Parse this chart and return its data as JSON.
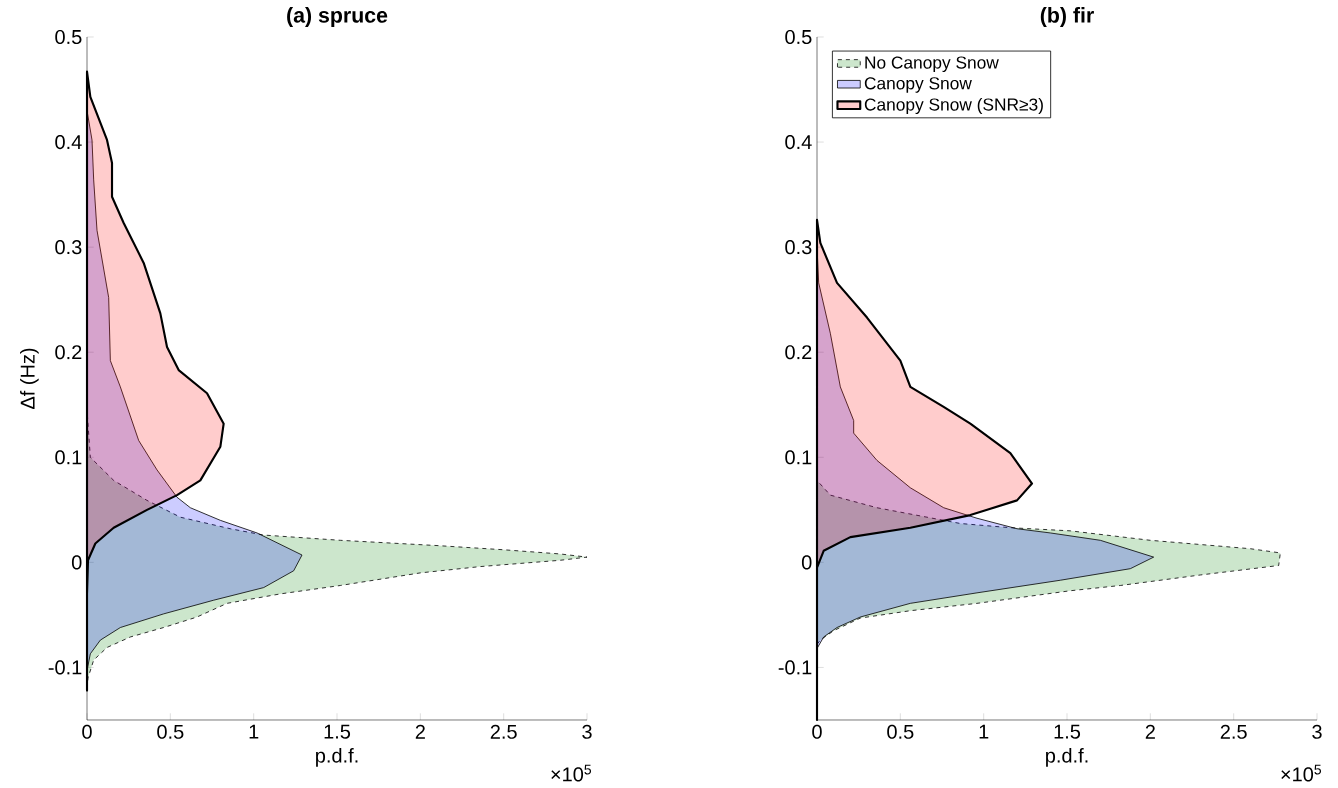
{
  "chart_data": [
    {
      "type": "area",
      "orientation": "horizontal",
      "title": "(a) spruce",
      "xlabel": "p.d.f.",
      "ylabel": "Δf (Hz)",
      "legend": false,
      "xlim": [
        0,
        3
      ],
      "ylim": [
        -0.15,
        0.5
      ],
      "xticks": [
        0,
        0.5,
        1,
        1.5,
        2,
        2.5,
        3
      ],
      "yticks": [
        -0.1,
        0,
        0.1,
        0.2,
        0.3,
        0.4,
        0.5
      ],
      "annotations": [
        "×10$^{5}$"
      ],
      "series": [
        {
          "color": "#008000",
          "line_style": "dashed",
          "x": [
            -0.12,
            -0.11,
            -0.093,
            -0.081,
            -0.071,
            -0.062,
            -0.052,
            -0.039,
            -0.03,
            -0.022,
            -0.01,
            -0.004,
            0.002,
            0.005,
            0.008,
            0.012,
            0.016,
            0.021,
            0.026,
            0.032,
            0.043,
            0.059,
            0.078,
            0.1,
            0.145
          ],
          "values": [
            0,
            0.006,
            0.04,
            0.12,
            0.26,
            0.46,
            0.66,
            0.84,
            1.16,
            1.52,
            2.0,
            2.36,
            2.84,
            3.0,
            2.84,
            2.5,
            2.1,
            1.52,
            1.06,
            0.86,
            0.56,
            0.36,
            0.16,
            0.02,
            0
          ]
        },
        {
          "color": "#0000ff",
          "line_style": "solid",
          "x": [
            -0.103,
            -0.087,
            -0.074,
            -0.062,
            -0.049,
            -0.036,
            -0.024,
            -0.008,
            0.007,
            0.014,
            0.028,
            0.04,
            0.052,
            0.062,
            0.088,
            0.116,
            0.167,
            0.192,
            0.252,
            0.316,
            0.364,
            0.402,
            0.43
          ],
          "values": [
            0,
            0.02,
            0.08,
            0.2,
            0.46,
            0.76,
            1.06,
            1.24,
            1.29,
            1.2,
            1.02,
            0.8,
            0.62,
            0.54,
            0.42,
            0.31,
            0.2,
            0.14,
            0.13,
            0.06,
            0.04,
            0.03,
            0
          ]
        },
        {
          "color": "#ff0000",
          "line_style": "solid",
          "x": [
            -0.122,
            -0.03,
            0.002,
            0.018,
            0.033,
            0.05,
            0.064,
            0.078,
            0.11,
            0.132,
            0.161,
            0.183,
            0.205,
            0.237,
            0.285,
            0.323,
            0.348,
            0.38,
            0.402,
            0.443,
            0.467
          ],
          "values": [
            0,
            0,
            0.006,
            0.05,
            0.16,
            0.36,
            0.54,
            0.68,
            0.8,
            0.82,
            0.72,
            0.55,
            0.48,
            0.44,
            0.34,
            0.22,
            0.15,
            0.15,
            0.12,
            0.02,
            0
          ]
        }
      ]
    },
    {
      "type": "area",
      "orientation": "horizontal",
      "title": "(b) fir",
      "xlabel": "p.d.f.",
      "legend": "top left",
      "xlim": [
        0,
        3
      ],
      "ylim": [
        -0.15,
        0.5
      ],
      "xticks": [
        0,
        0.5,
        1,
        1.5,
        2,
        2.5,
        3
      ],
      "yticks": [
        -0.1,
        0,
        0.1,
        0.2,
        0.3,
        0.4,
        0.5
      ],
      "annotations": [
        "×10$^{5}$"
      ],
      "series": [
        {
          "name": "No Canopy Snow",
          "color": "#008000",
          "line_style": "dashed",
          "x": [
            -0.078,
            -0.074,
            -0.065,
            -0.053,
            -0.046,
            -0.039,
            -0.027,
            -0.022,
            -0.012,
            -0.003,
            0.009,
            0.013,
            0.021,
            0.03,
            0.033,
            0.037,
            0.043,
            0.052,
            0.064,
            0.078
          ],
          "values": [
            0,
            0.02,
            0.1,
            0.26,
            0.56,
            0.96,
            1.52,
            1.82,
            2.3,
            2.77,
            2.78,
            2.6,
            2.0,
            1.52,
            1.16,
            0.86,
            0.66,
            0.36,
            0.08,
            0
          ]
        },
        {
          "name": "Canopy Snow",
          "color": "#0000ff",
          "line_style": "solid",
          "x": [
            -0.082,
            -0.071,
            -0.062,
            -0.052,
            -0.039,
            -0.029,
            -0.017,
            -0.006,
            0.005,
            0.021,
            0.028,
            0.032,
            0.042,
            0.052,
            0.071,
            0.097,
            0.123,
            0.135,
            0.167,
            0.218,
            0.266,
            0.3
          ],
          "values": [
            0,
            0.04,
            0.12,
            0.26,
            0.56,
            0.96,
            1.46,
            1.88,
            2.02,
            1.7,
            1.4,
            1.2,
            0.96,
            0.76,
            0.56,
            0.36,
            0.22,
            0.22,
            0.14,
            0.08,
            0.01,
            0
          ]
        },
        {
          "name": "Canopy Snow (SNR≥3)",
          "color": "#ff0000",
          "line_style": "solid",
          "x": [
            -0.15,
            -0.005,
            0.011,
            0.024,
            0.033,
            0.045,
            0.059,
            0.075,
            0.104,
            0.132,
            0.148,
            0.167,
            0.192,
            0.233,
            0.266,
            0.304,
            0.326
          ],
          "values": [
            0,
            0,
            0.04,
            0.2,
            0.56,
            0.92,
            1.2,
            1.29,
            1.16,
            0.92,
            0.76,
            0.56,
            0.5,
            0.3,
            0.12,
            0.02,
            0
          ]
        }
      ]
    }
  ]
}
